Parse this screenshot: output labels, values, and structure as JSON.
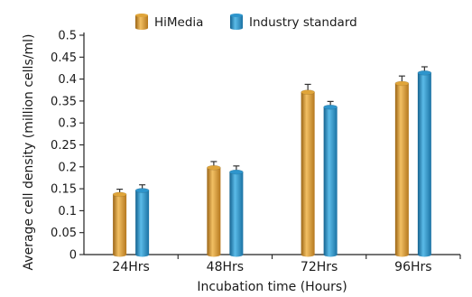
{
  "chart_data": {
    "type": "bar",
    "categories": [
      "24Hrs",
      "48Hrs",
      "72Hrs",
      "96Hrs"
    ],
    "series": [
      {
        "name": "HiMedia",
        "values": [
          0.137,
          0.198,
          0.37,
          0.39
        ],
        "errors": [
          0.012,
          0.014,
          0.018,
          0.017
        ],
        "color": "#e0a53a"
      },
      {
        "name": "Industry standard",
        "values": [
          0.146,
          0.188,
          0.336,
          0.414
        ],
        "errors": [
          0.013,
          0.014,
          0.013,
          0.014
        ],
        "color": "#2e95cc"
      }
    ],
    "xlabel": "Incubation time (Hours)",
    "ylabel": "Average cell density (million cells/ml)",
    "ylim": [
      0,
      0.5
    ],
    "yticks": [
      "0",
      "0.05",
      "0.1",
      "0.15",
      "0.2",
      "0.25",
      "0.3",
      "0.35",
      "0.4",
      "0.45",
      "0.5"
    ],
    "grid": false,
    "legend_position": "top"
  }
}
